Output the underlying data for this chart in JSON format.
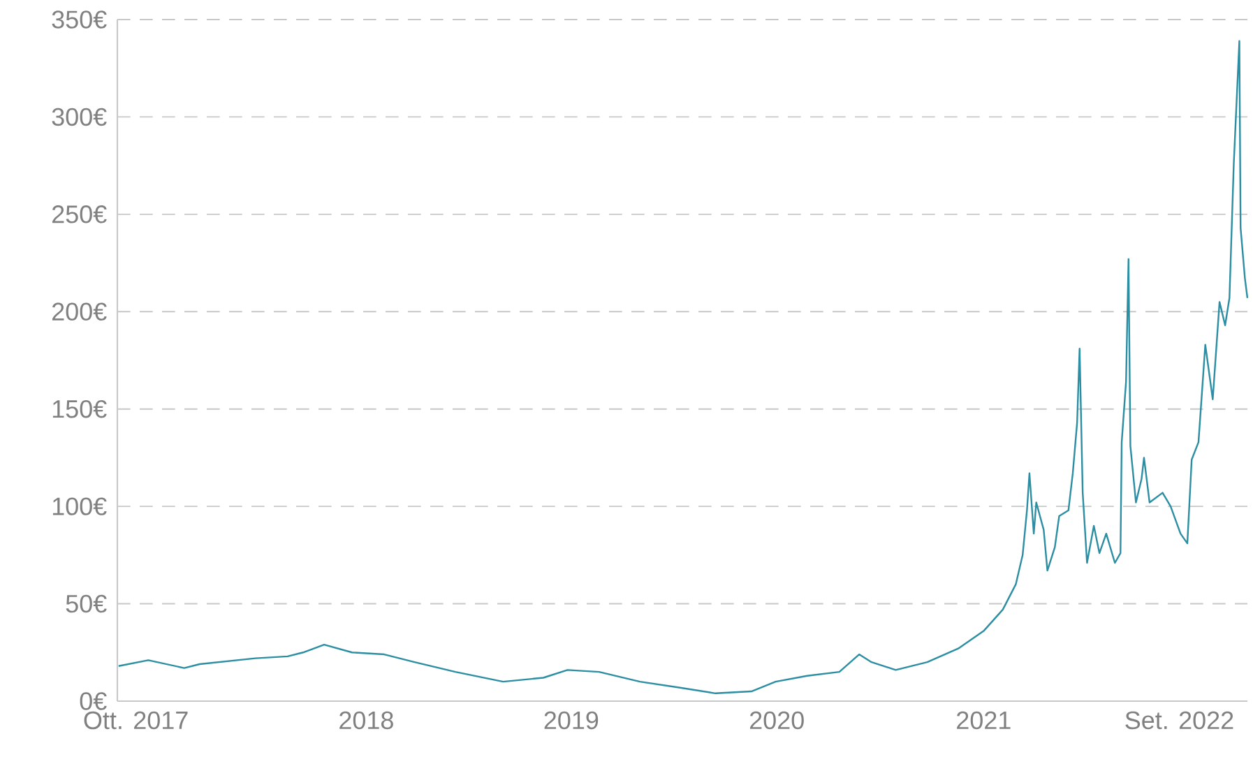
{
  "chart_data": {
    "type": "line",
    "color": "#2b8ea3",
    "grid": "y",
    "marker": "none",
    "line_style": "solid",
    "xlim": [
      "2017-10-01",
      "2022-09-30"
    ],
    "xticks": [
      {
        "value": "2017-10-31",
        "label": "Ott. 2017"
      },
      {
        "value": "2018-11-07",
        "label": "2018"
      },
      {
        "value": "2019-10-04",
        "label": "2019"
      },
      {
        "value": "2020-08-31",
        "label": "2020"
      },
      {
        "value": "2021-07-31",
        "label": "2021"
      },
      {
        "value": "2022-06-12",
        "label": "Set. 2022"
      }
    ],
    "ylim": [
      0,
      350
    ],
    "yticks": [
      {
        "value": 0,
        "label": "0€"
      },
      {
        "value": 50,
        "label": "50€"
      },
      {
        "value": 100,
        "label": "100€"
      },
      {
        "value": 150,
        "label": "150€"
      },
      {
        "value": 200,
        "label": "200€"
      },
      {
        "value": 250,
        "label": "250€"
      },
      {
        "value": 300,
        "label": "300€"
      },
      {
        "value": 350,
        "label": "350€"
      }
    ],
    "x": [
      "2017-10-03",
      "2017-11-20",
      "2018-01-17",
      "2018-02-11",
      "2018-05-12",
      "2018-07-03",
      "2018-07-28",
      "2018-08-31",
      "2018-10-15",
      "2018-12-06",
      "2019-01-24",
      "2019-03-31",
      "2019-06-16",
      "2019-08-20",
      "2019-09-28",
      "2019-11-18",
      "2020-01-23",
      "2020-03-26",
      "2020-05-24",
      "2020-07-21",
      "2020-08-29",
      "2020-10-19",
      "2020-12-10",
      "2021-01-11",
      "2021-01-31",
      "2021-03-11",
      "2021-05-01",
      "2021-06-20",
      "2021-07-31",
      "2021-08-31",
      "2021-09-21",
      "2021-10-02",
      "2021-10-09",
      "2021-10-13",
      "2021-10-20",
      "2021-10-24",
      "2021-11-05",
      "2021-11-11",
      "2021-11-23",
      "2021-11-30",
      "2021-12-15",
      "2021-12-22",
      "2021-12-29",
      "2022-01-02",
      "2022-01-07",
      "2022-01-14",
      "2022-01-25",
      "2022-02-03",
      "2022-02-14",
      "2022-02-28",
      "2022-03-09",
      "2022-03-11",
      "2022-03-18",
      "2022-03-22",
      "2022-03-25",
      "2022-04-03",
      "2022-04-12",
      "2022-04-16",
      "2022-04-25",
      "2022-05-16",
      "2022-05-29",
      "2022-06-14",
      "2022-06-25",
      "2022-07-02",
      "2022-07-13",
      "2022-07-24",
      "2022-08-05",
      "2022-08-16",
      "2022-08-25",
      "2022-09-01",
      "2022-09-08",
      "2022-09-17",
      "2022-09-19",
      "2022-09-26",
      "2022-09-30"
    ],
    "values": [
      18,
      21,
      17,
      19,
      22,
      23,
      25,
      29,
      25,
      24,
      20,
      15,
      10,
      12,
      16,
      15,
      10,
      7,
      4,
      5,
      10,
      13,
      15,
      24,
      20,
      16,
      20,
      27,
      36,
      47,
      60,
      75,
      98,
      117,
      86,
      102,
      88,
      67,
      79,
      95,
      98,
      117,
      143,
      181,
      107,
      71,
      90,
      76,
      86,
      71,
      76,
      133,
      164,
      227,
      131,
      102,
      114,
      125,
      102,
      107,
      100,
      86,
      81,
      124,
      133,
      183,
      155,
      205,
      193,
      207,
      276,
      339,
      243,
      217,
      207
    ]
  }
}
